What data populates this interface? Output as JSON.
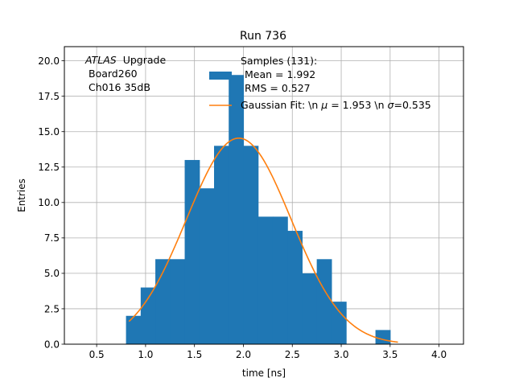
{
  "chart_data": {
    "type": "bar",
    "title": "Run 736",
    "xlabel": "time [ns]",
    "ylabel": "Entries",
    "xlim": [
      0.17,
      4.25
    ],
    "ylim": [
      0,
      21
    ],
    "grid": true,
    "x_ticks": [
      "0.5",
      "1.0",
      "1.5",
      "2.0",
      "2.5",
      "3.0",
      "3.5",
      "4.0"
    ],
    "y_ticks": [
      "0.0",
      "2.5",
      "5.0",
      "7.5",
      "10.0",
      "12.5",
      "15.0",
      "17.5",
      "20.0"
    ],
    "bar_color": "#1f77b4",
    "fit_color": "#ff7f0e",
    "histogram": {
      "bin_edges": [
        0.8,
        0.95,
        1.1,
        1.25,
        1.4,
        1.55,
        1.7,
        1.85,
        2.0,
        2.15,
        2.3,
        2.45,
        2.6,
        2.75,
        2.9,
        3.05,
        3.2,
        3.35,
        3.5,
        3.65
      ],
      "counts": [
        2,
        4,
        6,
        6,
        13,
        11,
        14,
        19,
        14,
        9,
        9,
        8,
        5,
        6,
        3,
        0,
        0,
        1,
        0
      ]
    },
    "fit": {
      "type": "gaussian",
      "mu": 1.953,
      "sigma": 0.535,
      "x_range": [
        0.83,
        3.58
      ]
    },
    "legend": {
      "position": "top-right",
      "samples_label": "Samples (131):\n Mean = 1.992\n RMS = 0.527",
      "fit_label": "Gaussian Fit: \\n $\\mu$ = 1.953 \\n $\\sigma$=0.535"
    },
    "annotation": {
      "atlas": "ATLAS",
      "upgrade": "Upgrade",
      "line2": "Board260",
      "line3": "Ch016 35dB"
    }
  },
  "legend_text": {
    "samples_line1": "Samples (131):",
    "samples_line2": "Mean = 1.992",
    "samples_line3": "RMS = 0.527",
    "fit_prefix": "Gaussian Fit: \\n ",
    "mu": "μ",
    "mu_value": " = 1.953 \\n ",
    "sigma": "σ",
    "sigma_value": "=0.535"
  }
}
